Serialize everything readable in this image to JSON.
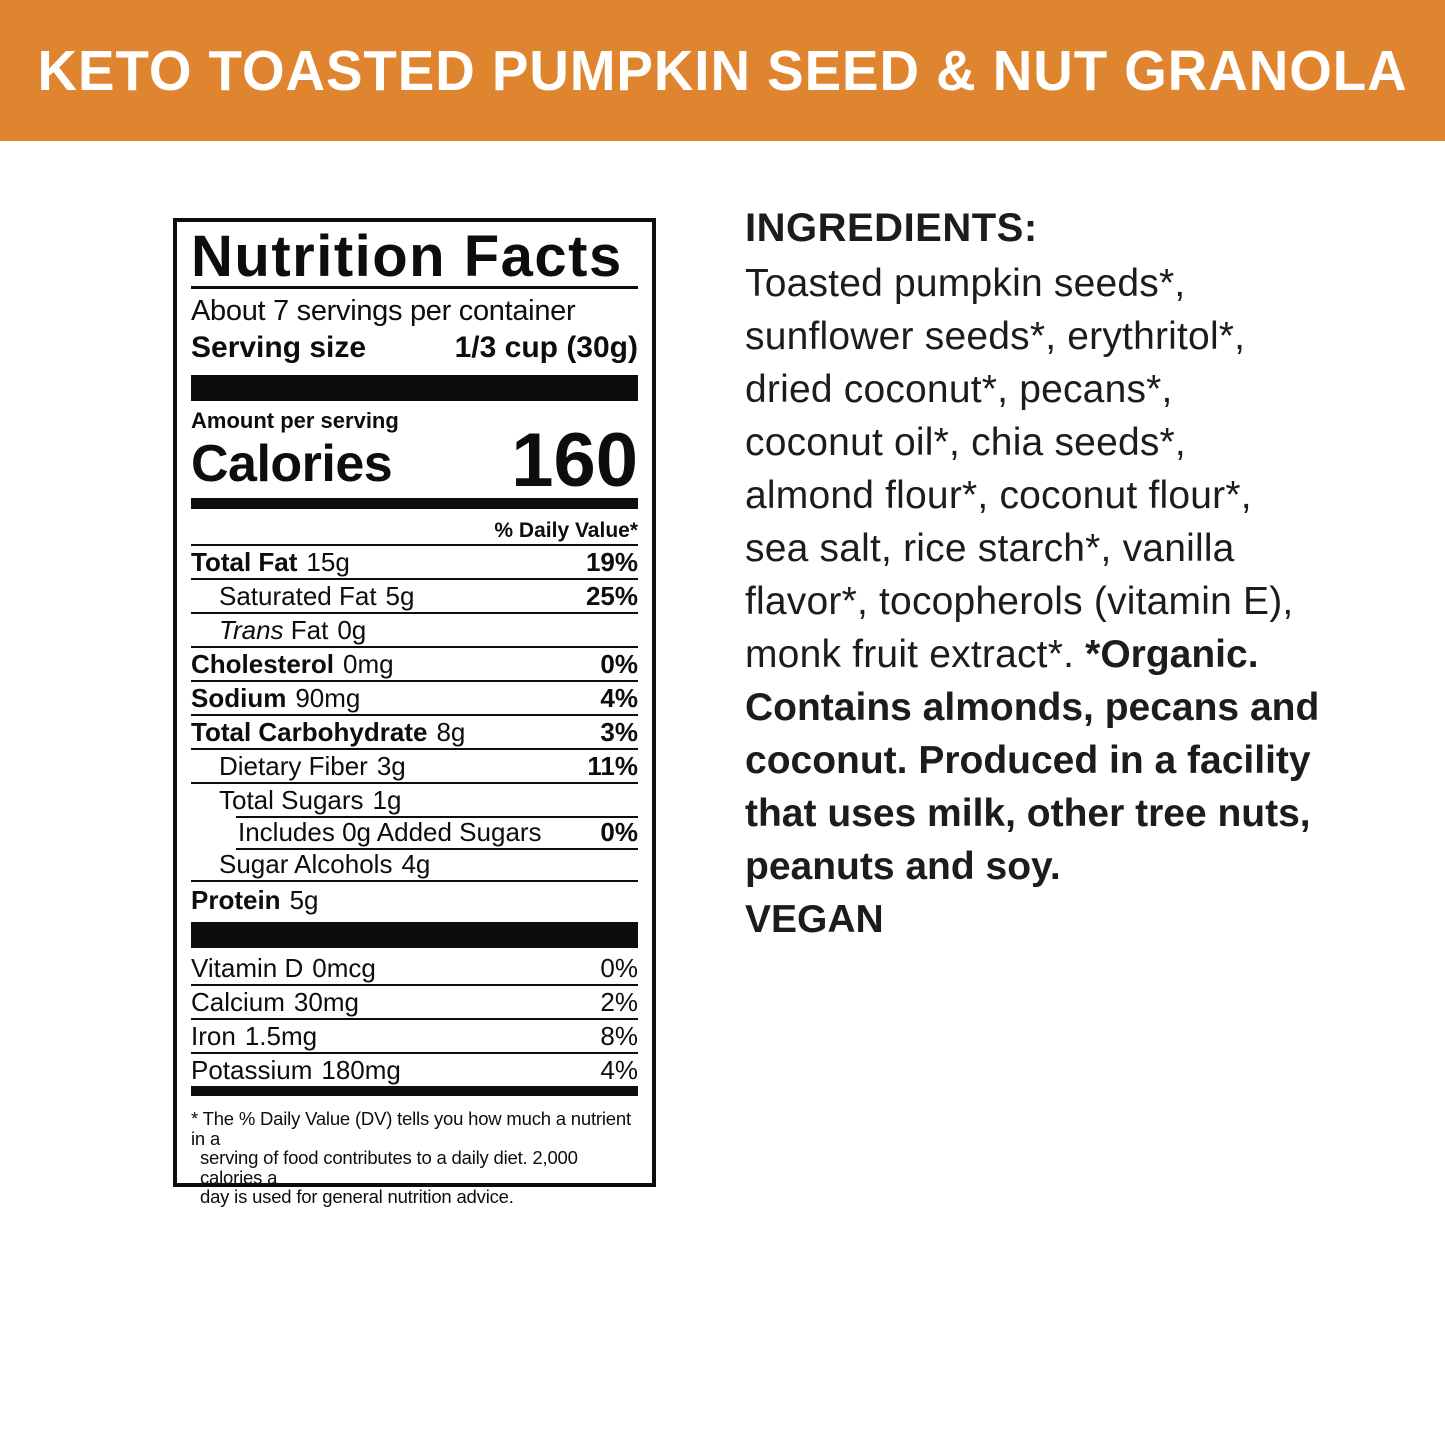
{
  "banner": {
    "title": "KETO TOASTED PUMPKIN SEED & NUT GRANOLA",
    "bg_color": "#DF8530",
    "text_color": "#FFFFFF"
  },
  "nutrition_facts": {
    "title": "Nutrition Facts",
    "servings_per_container": "About 7 servings per container",
    "serving_size_label": "Serving size",
    "serving_size_value": "1/3 cup (30g)",
    "amount_per_serving": "Amount per serving",
    "calories_label": "Calories",
    "calories_value": "160",
    "daily_value_header": "% Daily Value*",
    "rows": [
      {
        "label": "Total Fat",
        "amount": "15g",
        "dv": "19%"
      },
      {
        "label": "Saturated Fat",
        "amount": "5g",
        "dv": "25%"
      },
      {
        "label_italic": "Trans",
        "label": "Fat",
        "amount": "0g"
      },
      {
        "label": "Cholesterol",
        "amount": "0mg",
        "dv": "0%"
      },
      {
        "label": "Sodium",
        "amount": "90mg",
        "dv": "4%"
      },
      {
        "label": "Total Carbohydrate",
        "amount": "8g",
        "dv": "3%"
      },
      {
        "label": "Dietary Fiber",
        "amount": "3g",
        "dv": "11%"
      },
      {
        "label": "Total Sugars",
        "amount": "1g"
      },
      {
        "label": "Includes 0g Added Sugars",
        "dv": "0%"
      },
      {
        "label": "Sugar Alcohols",
        "amount": "4g"
      },
      {
        "label": "Protein",
        "amount": "5g"
      }
    ],
    "micronutrients": [
      {
        "label": "Vitamin D",
        "amount": "0mcg",
        "dv": "0%"
      },
      {
        "label": "Calcium",
        "amount": "30mg",
        "dv": "2%"
      },
      {
        "label": "Iron",
        "amount": "1.5mg",
        "dv": "8%"
      },
      {
        "label": "Potassium",
        "amount": "180mg",
        "dv": "4%"
      }
    ],
    "footnote_lines": [
      "* The % Daily Value (DV) tells you how much a nutrient in a",
      "serving of food contributes to a daily diet. 2,000 calories a",
      "day is used for general nutrition advice."
    ]
  },
  "ingredients": {
    "heading": "INGREDIENTS:",
    "lines": [
      {
        "regular": "Toasted pumpkin seeds*,"
      },
      {
        "regular": "sunflower seeds*, erythritol*,"
      },
      {
        "regular": "dried coconut*, pecans*,"
      },
      {
        "regular": "coconut oil*, chia seeds*,"
      },
      {
        "regular": "almond flour*, coconut flour*,"
      },
      {
        "regular": "sea salt, rice starch*, vanilla"
      },
      {
        "regular": "flavor*, tocopherols (vitamin E),"
      },
      {
        "regular": "monk fruit extract*. ",
        "bold": "*Organic."
      },
      {
        "bold": "Contains almonds, pecans and"
      },
      {
        "bold": "coconut. Produced in a facility"
      },
      {
        "bold": "that uses milk, other tree nuts,"
      },
      {
        "bold": "peanuts and soy."
      },
      {
        "bold": "VEGAN"
      }
    ]
  }
}
